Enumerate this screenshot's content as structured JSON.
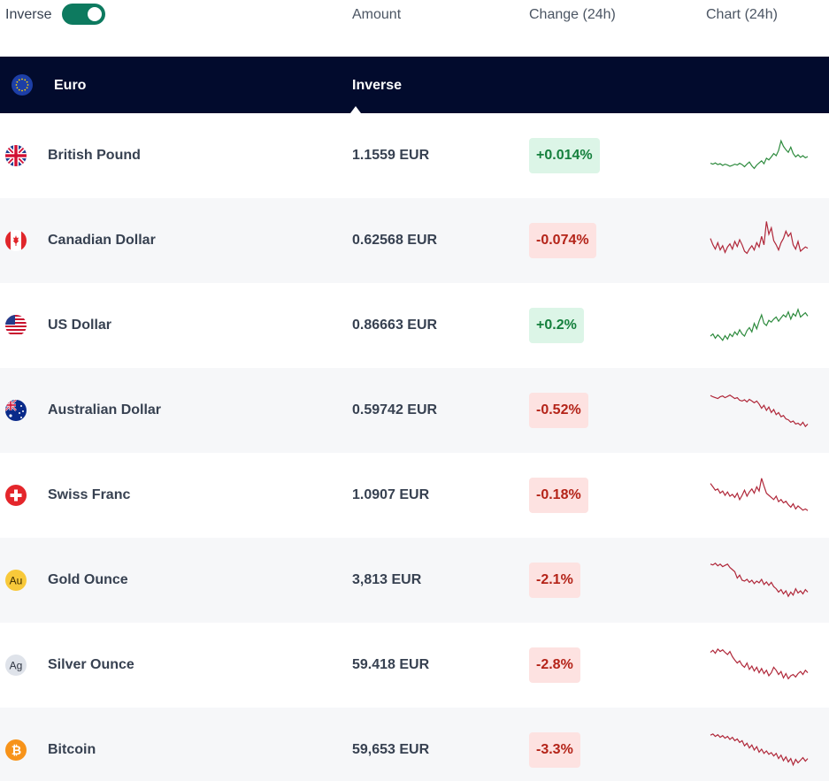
{
  "header": {
    "inverse_label": "Inverse",
    "inverse_on": true,
    "col_amount": "Amount",
    "col_change": "Change (24h)",
    "col_chart": "Chart (24h)"
  },
  "base": {
    "name": "Euro",
    "mode_label": "Inverse",
    "icon": "eu-flag-icon"
  },
  "colors": {
    "up": "#2e8b3e",
    "down": "#b0283a",
    "up_bg": "#dcf5e7",
    "down_bg": "#fde2e1",
    "navy": "#020b2d",
    "toggle": "#0d7a5f"
  },
  "rows": [
    {
      "name": "British Pound",
      "amount": "1.1559 EUR",
      "change": "+0.014%",
      "trend": "up",
      "icon": "uk-flag-icon",
      "spark": [
        0.32,
        0.3,
        0.33,
        0.29,
        0.31,
        0.27,
        0.3,
        0.28,
        0.25,
        0.27,
        0.3,
        0.28,
        0.32,
        0.29,
        0.24,
        0.3,
        0.35,
        0.26,
        0.2,
        0.28,
        0.33,
        0.38,
        0.31,
        0.44,
        0.4,
        0.47,
        0.55,
        0.5,
        0.62,
        0.85,
        0.72,
        0.64,
        0.58,
        0.7,
        0.55,
        0.47,
        0.52,
        0.46,
        0.5,
        0.45,
        0.48
      ]
    },
    {
      "name": "Canadian Dollar",
      "amount": "0.62568 EUR",
      "change": "-0.074%",
      "trend": "down",
      "icon": "canada-flag-icon",
      "spark": [
        0.55,
        0.4,
        0.3,
        0.45,
        0.28,
        0.38,
        0.22,
        0.35,
        0.42,
        0.3,
        0.48,
        0.36,
        0.52,
        0.4,
        0.25,
        0.2,
        0.3,
        0.38,
        0.28,
        0.45,
        0.35,
        0.6,
        0.4,
        0.95,
        0.65,
        0.8,
        0.5,
        0.4,
        0.28,
        0.45,
        0.55,
        0.72,
        0.6,
        0.68,
        0.4,
        0.3,
        0.48,
        0.25,
        0.3,
        0.35,
        0.32
      ]
    },
    {
      "name": "US Dollar",
      "amount": "0.86663 EUR",
      "change": "+0.2%",
      "trend": "up",
      "icon": "us-flag-icon",
      "spark": [
        0.25,
        0.3,
        0.2,
        0.28,
        0.22,
        0.15,
        0.26,
        0.18,
        0.3,
        0.24,
        0.35,
        0.28,
        0.4,
        0.3,
        0.25,
        0.38,
        0.45,
        0.35,
        0.55,
        0.42,
        0.6,
        0.75,
        0.55,
        0.5,
        0.62,
        0.58,
        0.65,
        0.7,
        0.6,
        0.68,
        0.75,
        0.7,
        0.82,
        0.65,
        0.78,
        0.72,
        0.88,
        0.7,
        0.75,
        0.8,
        0.72
      ]
    },
    {
      "name": "Australian Dollar",
      "amount": "0.59742 EUR",
      "change": "-0.52%",
      "trend": "down",
      "icon": "australia-flag-icon",
      "spark": [
        0.85,
        0.82,
        0.8,
        0.78,
        0.82,
        0.84,
        0.8,
        0.83,
        0.86,
        0.82,
        0.78,
        0.8,
        0.74,
        0.72,
        0.75,
        0.7,
        0.76,
        0.72,
        0.68,
        0.72,
        0.65,
        0.55,
        0.62,
        0.5,
        0.58,
        0.45,
        0.52,
        0.4,
        0.45,
        0.35,
        0.38,
        0.3,
        0.28,
        0.22,
        0.25,
        0.18,
        0.2,
        0.15,
        0.22,
        0.12,
        0.18
      ]
    },
    {
      "name": "Swiss Franc",
      "amount": "1.0907 EUR",
      "change": "-0.18%",
      "trend": "down",
      "icon": "swiss-flag-icon",
      "spark": [
        0.78,
        0.7,
        0.62,
        0.65,
        0.55,
        0.6,
        0.5,
        0.58,
        0.48,
        0.52,
        0.45,
        0.55,
        0.4,
        0.5,
        0.62,
        0.48,
        0.58,
        0.65,
        0.55,
        0.7,
        0.6,
        0.9,
        0.72,
        0.55,
        0.5,
        0.45,
        0.4,
        0.48,
        0.35,
        0.4,
        0.32,
        0.36,
        0.28,
        0.22,
        0.3,
        0.18,
        0.25,
        0.2,
        0.15,
        0.18,
        0.14
      ]
    },
    {
      "name": "Gold Ounce",
      "amount": "3,813 EUR",
      "change": "-2.1%",
      "trend": "down",
      "icon": "gold-coin-icon",
      "spark": [
        0.88,
        0.86,
        0.9,
        0.84,
        0.88,
        0.82,
        0.85,
        0.88,
        0.8,
        0.75,
        0.7,
        0.55,
        0.62,
        0.5,
        0.48,
        0.52,
        0.45,
        0.5,
        0.42,
        0.48,
        0.44,
        0.52,
        0.4,
        0.46,
        0.38,
        0.45,
        0.35,
        0.3,
        0.22,
        0.28,
        0.18,
        0.25,
        0.12,
        0.22,
        0.15,
        0.3,
        0.2,
        0.25,
        0.18,
        0.28,
        0.22
      ]
    },
    {
      "name": "Silver Ounce",
      "amount": "59.418 EUR",
      "change": "-2.8%",
      "trend": "down",
      "icon": "silver-coin-icon",
      "spark": [
        0.8,
        0.85,
        0.78,
        0.88,
        0.82,
        0.86,
        0.8,
        0.75,
        0.82,
        0.7,
        0.62,
        0.55,
        0.6,
        0.5,
        0.45,
        0.55,
        0.4,
        0.48,
        0.36,
        0.45,
        0.32,
        0.42,
        0.3,
        0.38,
        0.25,
        0.32,
        0.45,
        0.38,
        0.28,
        0.35,
        0.2,
        0.3,
        0.18,
        0.25,
        0.28,
        0.22,
        0.3,
        0.35,
        0.28,
        0.38,
        0.32
      ]
    },
    {
      "name": "Bitcoin",
      "amount": "59,653 EUR",
      "change": "-3.3%",
      "trend": "down",
      "icon": "bitcoin-icon",
      "spark": [
        0.85,
        0.88,
        0.82,
        0.86,
        0.8,
        0.84,
        0.78,
        0.82,
        0.75,
        0.8,
        0.72,
        0.76,
        0.68,
        0.72,
        0.6,
        0.66,
        0.55,
        0.62,
        0.5,
        0.58,
        0.45,
        0.52,
        0.42,
        0.48,
        0.4,
        0.44,
        0.36,
        0.42,
        0.3,
        0.38,
        0.25,
        0.34,
        0.22,
        0.3,
        0.15,
        0.28,
        0.2,
        0.26,
        0.32,
        0.24,
        0.3
      ]
    }
  ]
}
